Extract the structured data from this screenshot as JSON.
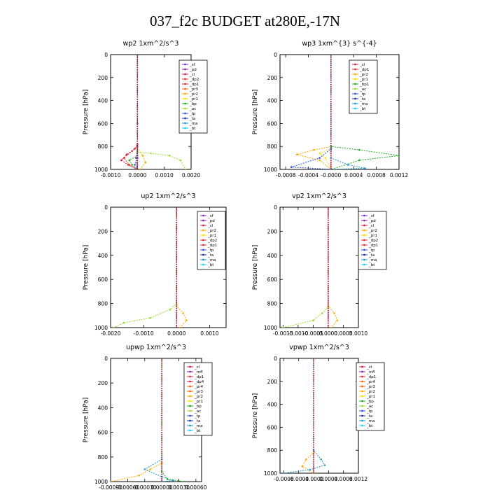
{
  "title": "037_f2c  BUDGET at280E,-17N",
  "colors": {
    "sf": "#7733cc",
    "pd": "#8822aa",
    "cl": "#cc2244",
    "dp2": "#dd3333",
    "dp1": "#dd3333",
    "dp4": "#cc2244",
    "pr3": "#ee6611",
    "pr2": "#ffaa00",
    "pr1": "#ffdd00",
    "pr4": "#ee6611",
    "mfl": "#8822aa",
    "bp": "#22aa22",
    "bp1": "#22aa22",
    "ac": "#99dd33",
    "tp": "#3355dd",
    "ta": "#2233aa",
    "ma": "#2299cc",
    "bt": "#22ccee"
  },
  "chart_data": [
    {
      "type": "line",
      "title": "wp2  1xm^2/s^3",
      "ylabel": "Pressure [hPa]",
      "xlim": [
        -0.001,
        0.002
      ],
      "ylim": [
        0,
        1000
      ],
      "xticks": [
        "-0.0010",
        "0.0000",
        "0.0010",
        "0.0020"
      ],
      "xtick_values": [
        -0.001,
        0.0,
        0.001,
        0.002
      ],
      "yticks": [
        "0",
        "200",
        "400",
        "600",
        "800",
        "1000"
      ],
      "legend": [
        "_sf",
        "_pd",
        "_cl",
        "_dp2",
        "_dp1",
        "_pr3",
        "_pr2",
        "_pr1",
        "_bp",
        "_ac",
        "_tp",
        "_ta",
        "_ma",
        "_bt"
      ],
      "series": [
        {
          "name": "_sf",
          "key": "sf",
          "points": [
            [
              0,
              0
            ],
            [
              0,
              600
            ],
            [
              0,
              800
            ],
            [
              0,
              900
            ],
            [
              0,
              1000
            ]
          ]
        },
        {
          "name": "_pd",
          "key": "pd",
          "points": [
            [
              0,
              0
            ],
            [
              0,
              800
            ],
            [
              -5e-05,
              900
            ],
            [
              0,
              1000
            ]
          ]
        },
        {
          "name": "_cl",
          "key": "cl",
          "points": [
            [
              0,
              0
            ],
            [
              0,
              780
            ],
            [
              -0.0001,
              820
            ],
            [
              -0.0004,
              870
            ],
            [
              -0.0006,
              920
            ],
            [
              -0.00035,
              960
            ],
            [
              0,
              1000
            ]
          ]
        },
        {
          "name": "_dp2",
          "key": "dp2",
          "points": [
            [
              0,
              0
            ],
            [
              0,
              800
            ],
            [
              -0.0002,
              840
            ],
            [
              -0.0005,
              900
            ],
            [
              -0.0003,
              960
            ],
            [
              0,
              1000
            ]
          ]
        },
        {
          "name": "_pr2",
          "key": "pr2",
          "points": [
            [
              0,
              0
            ],
            [
              0,
              820
            ],
            [
              0.0002,
              880
            ],
            [
              0.0003,
              940
            ],
            [
              0.0001,
              1000
            ]
          ]
        },
        {
          "name": "_bp",
          "key": "bp",
          "points": [
            [
              0,
              0
            ],
            [
              0,
              880
            ],
            [
              -0.0003,
              920
            ],
            [
              -0.0002,
              960
            ],
            [
              0,
              1000
            ]
          ]
        },
        {
          "name": "_ac",
          "key": "ac",
          "points": [
            [
              0,
              0
            ],
            [
              0,
              850
            ],
            [
              0.0005,
              860
            ],
            [
              0.0012,
              880
            ],
            [
              0.0016,
              920
            ],
            [
              0.0018,
              1000
            ]
          ]
        },
        {
          "name": "_tp",
          "key": "tp",
          "points": [
            [
              0,
              0
            ],
            [
              0,
              900
            ],
            [
              -0.0001,
              960
            ],
            [
              0,
              1000
            ]
          ]
        }
      ]
    },
    {
      "type": "line",
      "title": "wp3  1xm^{3} s^{-4}",
      "ylabel": "Pressure [hPa]",
      "xlim": [
        -0.0009,
        0.0012
      ],
      "ylim": [
        0,
        1000
      ],
      "xticks": [
        "-0.0008",
        "-0.0004",
        "-0.0000",
        "0.0004",
        "0.0008",
        "0.0012"
      ],
      "xtick_values": [
        -0.0008,
        -0.0004,
        0.0,
        0.0004,
        0.0008,
        0.0012
      ],
      "yticks": [
        "0",
        "200",
        "400",
        "600",
        "800",
        "1000"
      ],
      "legend": [
        "_cl",
        "_dp1",
        "_pr2",
        "_pr1",
        "_bp1",
        "_ac",
        "_tp",
        "_ta",
        "_ma",
        "_bt"
      ],
      "series": [
        {
          "name": "_cl",
          "key": "cl",
          "points": [
            [
              0,
              0
            ],
            [
              0,
              1000
            ]
          ]
        },
        {
          "name": "_pr2",
          "key": "pr2",
          "points": [
            [
              0,
              0
            ],
            [
              0,
              800
            ],
            [
              -0.0003,
              830
            ],
            [
              -0.0006,
              870
            ],
            [
              -0.0002,
              920
            ],
            [
              0,
              1000
            ]
          ]
        },
        {
          "name": "_pr1",
          "key": "pr1",
          "points": [
            [
              0,
              0
            ],
            [
              0,
              820
            ],
            [
              -0.0002,
              860
            ],
            [
              -0.0001,
              900
            ],
            [
              0,
              1000
            ]
          ]
        },
        {
          "name": "_bp1",
          "key": "bp1",
          "points": [
            [
              0,
              0
            ],
            [
              0,
              800
            ],
            [
              0.0005,
              830
            ],
            [
              0.0012,
              880
            ],
            [
              0.0005,
              920
            ],
            [
              0,
              1000
            ]
          ]
        },
        {
          "name": "_tp",
          "key": "tp",
          "points": [
            [
              0,
              0
            ],
            [
              0,
              820
            ],
            [
              -0.0002,
              900
            ],
            [
              -0.0007,
              980
            ],
            [
              0,
              1000
            ]
          ]
        },
        {
          "name": "_ma",
          "key": "ma",
          "points": [
            [
              0,
              0
            ],
            [
              0,
              900
            ],
            [
              0.0003,
              960
            ],
            [
              0.0006,
              990
            ],
            [
              0,
              1000
            ]
          ]
        }
      ]
    },
    {
      "type": "line",
      "title": "up2  1xm^2/s^3",
      "ylabel": "Pressure [hPa]",
      "xlim": [
        -0.002,
        0.0015
      ],
      "ylim": [
        0,
        1000
      ],
      "xticks": [
        "-0.0020",
        "-0.0010",
        "0.0000",
        "0.0010"
      ],
      "xtick_values": [
        -0.002,
        -0.001,
        0.0,
        0.001
      ],
      "yticks": [
        "0",
        "200",
        "400",
        "600",
        "800",
        "1000"
      ],
      "legend": [
        "_sf",
        "_pd",
        "_cl",
        "_pr2",
        "_pr1",
        "_dp2",
        "_dp1",
        "_tp",
        "_ta",
        "_ma",
        "_bt"
      ],
      "series": [
        {
          "name": "_sf",
          "key": "sf",
          "points": [
            [
              0,
              0
            ],
            [
              0,
              1000
            ]
          ]
        },
        {
          "name": "_pr2",
          "key": "pr2",
          "points": [
            [
              0,
              0
            ],
            [
              0,
              820
            ],
            [
              0.0002,
              880
            ],
            [
              0.0003,
              940
            ],
            [
              0.0001,
              1000
            ]
          ]
        },
        {
          "name": "_dp2",
          "key": "ac",
          "points": [
            [
              0,
              0
            ],
            [
              0,
              800
            ],
            [
              -0.0002,
              850
            ],
            [
              -0.0008,
              920
            ],
            [
              -0.0016,
              960
            ],
            [
              -0.0019,
              1000
            ]
          ]
        },
        {
          "name": "_cl",
          "key": "cl",
          "points": [
            [
              0,
              0
            ],
            [
              0,
              1000
            ]
          ]
        }
      ]
    },
    {
      "type": "line",
      "title": "vp2  1xm^2/s^3",
      "ylabel": "Pressure [hPa]",
      "xlim": [
        -0.0016,
        0.001
      ],
      "ylim": [
        0,
        1000
      ],
      "xticks": [
        "-0.0015",
        "-0.0010",
        "-0.0005",
        "0.0000",
        "0.0005",
        "0.0010"
      ],
      "xtick_values": [
        -0.0015,
        -0.001,
        -0.0005,
        0.0,
        0.0005,
        0.001
      ],
      "yticks": [
        "0",
        "200",
        "400",
        "600",
        "800",
        "1000"
      ],
      "legend": [
        "_sf",
        "_pd",
        "_cl",
        "_pr2",
        "_pr1",
        "_dp2",
        "_dp1",
        "_tp",
        "_ta",
        "_ma",
        "_bt"
      ],
      "series": [
        {
          "name": "_sf",
          "key": "sf",
          "points": [
            [
              0,
              0
            ],
            [
              0,
              1000
            ]
          ]
        },
        {
          "name": "_pr2",
          "key": "pr2",
          "points": [
            [
              0,
              0
            ],
            [
              0,
              820
            ],
            [
              0.0002,
              880
            ],
            [
              0.0003,
              940
            ],
            [
              0.0001,
              1000
            ]
          ]
        },
        {
          "name": "_dp2",
          "key": "ac",
          "points": [
            [
              0,
              0
            ],
            [
              0,
              830
            ],
            [
              -0.0002,
              880
            ],
            [
              -0.0005,
              940
            ],
            [
              -0.0015,
              1000
            ]
          ]
        },
        {
          "name": "_cl",
          "key": "cl",
          "points": [
            [
              0,
              0
            ],
            [
              0,
              1000
            ]
          ]
        }
      ]
    },
    {
      "type": "line",
      "title": "upwp  1xm^2/s^3",
      "ylabel": "Pressure [hPa]",
      "xlim": [
        -0.0009,
        0.0007
      ],
      "ylim": [
        0,
        1000
      ],
      "xticks": [
        "-0.00090",
        "-0.00060",
        "-0.00030",
        "0.00000",
        "0.00030",
        "0.00060"
      ],
      "xtick_values": [
        -0.0009,
        -0.0006,
        -0.0003,
        0.0,
        0.0003,
        0.0006
      ],
      "yticks": [
        "0",
        "200",
        "400",
        "600",
        "800",
        "1000"
      ],
      "legend": [
        "_cl",
        "_mfl",
        "_dp1",
        "_dp4",
        "_pr4",
        "_pr3",
        "_pr2",
        "_pr1",
        "_bp",
        "_ac",
        "_tp",
        "_ta",
        "_ma",
        "_bt"
      ],
      "series": [
        {
          "name": "_cl",
          "key": "cl",
          "points": [
            [
              0,
              0
            ],
            [
              0,
              1000
            ]
          ]
        },
        {
          "name": "_pr2",
          "key": "pr2",
          "points": [
            [
              0,
              0
            ],
            [
              0,
              850
            ],
            [
              -0.0002,
              900
            ],
            [
              -0.0004,
              950
            ],
            [
              -0.0009,
              1000
            ]
          ]
        },
        {
          "name": "_ma",
          "key": "ma",
          "points": [
            [
              0,
              0
            ],
            [
              0,
              820
            ],
            [
              -0.0003,
              900
            ],
            [
              0,
              960
            ],
            [
              0.0002,
              990
            ],
            [
              0,
              1000
            ]
          ]
        },
        {
          "name": "_bp",
          "key": "bp",
          "points": [
            [
              0,
              0
            ],
            [
              0,
              920
            ],
            [
              0.0001,
              980
            ],
            [
              0.0004,
              1000
            ]
          ]
        }
      ]
    },
    {
      "type": "line",
      "title": "vpwp  1xm^2/s^3",
      "ylabel": "Pressure [hPa]",
      "xlim": [
        -0.0009,
        0.0012
      ],
      "ylim": [
        0,
        1000
      ],
      "xticks": [
        "-0.0008",
        "-0.0004",
        "-0.0000",
        "0.0004",
        "0.0008",
        "0.0012"
      ],
      "xtick_values": [
        -0.0008,
        -0.0004,
        0.0,
        0.0004,
        0.0008,
        0.0012
      ],
      "yticks": [
        "0",
        "200",
        "400",
        "600",
        "800",
        "1000"
      ],
      "legend": [
        "_cl",
        "_mfl",
        "_dp1",
        "_pr4",
        "_pr3",
        "_pr2",
        "_pr1",
        "_bp",
        "_ac",
        "_tp",
        "_ta",
        "_ma",
        "_bt"
      ],
      "series": [
        {
          "name": "_cl",
          "key": "cl",
          "points": [
            [
              0,
              0
            ],
            [
              0,
              1000
            ]
          ]
        },
        {
          "name": "_pr2",
          "key": "pr2",
          "points": [
            [
              0,
              0
            ],
            [
              0,
              820
            ],
            [
              -0.0002,
              880
            ],
            [
              -0.0003,
              940
            ],
            [
              0,
              1000
            ]
          ]
        },
        {
          "name": "_ma",
          "key": "ma",
          "points": [
            [
              0,
              0
            ],
            [
              0,
              800
            ],
            [
              0.0002,
              880
            ],
            [
              0.0003,
              930
            ],
            [
              -0.0001,
              970
            ],
            [
              -0.0008,
              1000
            ]
          ]
        }
      ]
    }
  ]
}
